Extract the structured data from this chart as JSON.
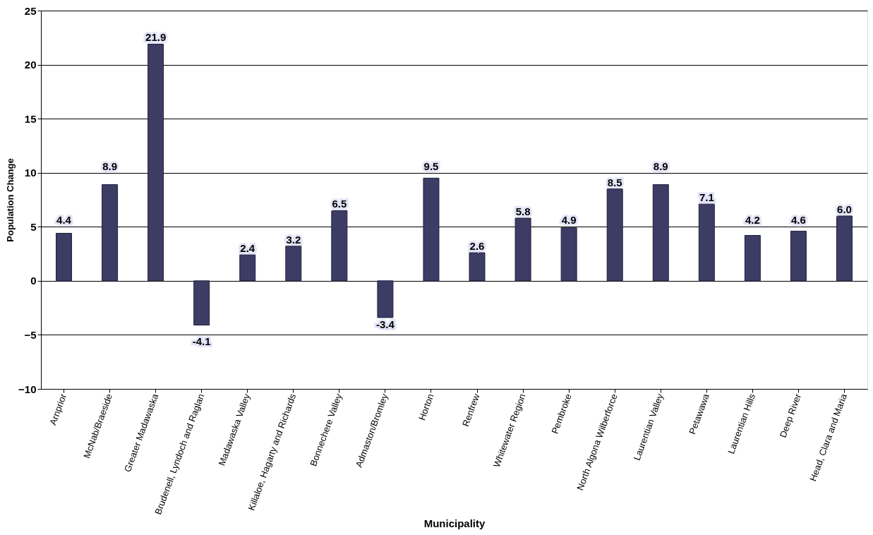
{
  "chart_data": {
    "type": "bar",
    "xlabel": "Municipality",
    "ylabel": "Population Change",
    "categories": [
      "Arnprior",
      "McNab/Braeside",
      "Greater Madawaska",
      "Brudenell, Lyndoch and Raglan",
      "Madawaska Valley",
      "Killaloe, Hagarty and Richards",
      "Bonnechere Valley",
      "Admaston/Bromley",
      "Horton",
      "Renfrew",
      "Whitewater Region",
      "Pembroke",
      "North Algona Wilberforce",
      "Laurentian Valley",
      "Petawawa",
      "Laurentian Hills",
      "Deep River",
      "Head, Clara and Maria"
    ],
    "values": [
      4.4,
      8.9,
      21.9,
      -4.1,
      2.4,
      3.2,
      6.5,
      -3.4,
      9.5,
      2.6,
      5.8,
      4.9,
      8.5,
      8.9,
      7.1,
      4.2,
      4.6,
      6.0
    ],
    "value_labels": [
      "4.4",
      "8.9",
      "21.9",
      "-4.1",
      "2.4",
      "3.2",
      "6.5",
      "-3.4",
      "9.5",
      "2.6",
      "5.8",
      "4.9",
      "8.5",
      "8.9",
      "7.1",
      "4.2",
      "4.6",
      "6.0"
    ],
    "color": "#3c3c64",
    "ylim": [
      -10,
      25
    ],
    "yticks": [
      -10,
      -5,
      0,
      5,
      10,
      15,
      20,
      25
    ],
    "grid": "y"
  }
}
